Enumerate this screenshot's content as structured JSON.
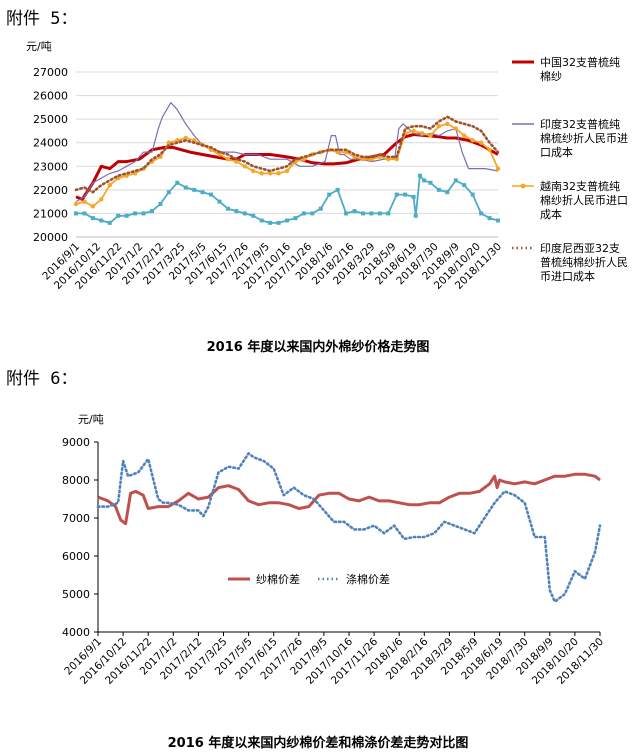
{
  "attachments": {
    "a5": "附件 5：",
    "a6": "附件 6："
  },
  "chart_data": [
    {
      "type": "line",
      "title": "2016 年度以来国内外棉纱价格走势图",
      "ylabel": "元/吨",
      "ylim": [
        20000,
        27000
      ],
      "yticks": [
        20000,
        21000,
        22000,
        23000,
        24000,
        25000,
        26000,
        27000
      ],
      "xticks": [
        "2016/9/1",
        "2016/10/12",
        "2016/11/22",
        "2017/1/2",
        "2017/2/12",
        "2017/3/25",
        "2017/5/5",
        "2017/6/15",
        "2017/7/26",
        "2017/9/5",
        "2017/10/16",
        "2017/11/26",
        "2018/1/6",
        "2018/2/16",
        "2018/3/29",
        "2018/5/9",
        "2018/6/19",
        "2018/7/30",
        "2018/9/9",
        "2018/10/20",
        "2018/11/30"
      ],
      "grid": "horizontal",
      "legend_position": "right",
      "x_domain": [
        0,
        20
      ],
      "series": [
        {
          "name": "中国32支普梳纯棉纱",
          "color": "#c00000",
          "style": "solid-thick",
          "x": [
            0,
            0.3,
            0.8,
            1.2,
            1.6,
            2,
            2.4,
            3,
            3.6,
            4.2,
            4.6,
            5,
            5.4,
            6,
            6.6,
            7.2,
            7.6,
            8,
            8.6,
            9.2,
            10,
            10.6,
            11.2,
            11.8,
            12.2,
            12.8,
            13.4,
            14,
            14.6,
            15.2,
            15.6,
            16,
            16.6,
            17.2,
            17.6,
            18,
            18.6,
            19.2,
            20
          ],
          "values": [
            21700,
            21600,
            22300,
            23000,
            22900,
            23200,
            23200,
            23300,
            23700,
            23800,
            23800,
            23700,
            23600,
            23500,
            23400,
            23300,
            23300,
            23500,
            23500,
            23500,
            23400,
            23300,
            23150,
            23100,
            23100,
            23150,
            23300,
            23400,
            23500,
            24000,
            24250,
            24350,
            24300,
            24250,
            24200,
            24200,
            24100,
            23900,
            23500
          ]
        },
        {
          "name": "印度32支普梳纯棉梳纱折人民币进口成本",
          "color": "#7f6cb5",
          "style": "solid-thin",
          "x": [
            0,
            0.4,
            0.8,
            1.2,
            1.6,
            2,
            2.4,
            2.8,
            3.2,
            3.6,
            3.9,
            4.1,
            4.3,
            4.5,
            4.8,
            5.2,
            5.6,
            6,
            6.4,
            7,
            7.5,
            8,
            8.6,
            9.2,
            10,
            10.6,
            11.2,
            11.8,
            12.1,
            12.3,
            12.5,
            12.7,
            13,
            13.5,
            14,
            14.6,
            15.1,
            15.3,
            15.5,
            16,
            16.4,
            16.8,
            17.2,
            17.6,
            18,
            18.3,
            18.6,
            19,
            19.4,
            20
          ],
          "values": [
            21500,
            21700,
            22300,
            22500,
            22700,
            22800,
            23000,
            23200,
            23600,
            23600,
            24600,
            25100,
            25400,
            25700,
            25400,
            24800,
            24300,
            23900,
            23700,
            23600,
            23600,
            23500,
            23500,
            23300,
            23300,
            23000,
            23000,
            23200,
            24300,
            24300,
            23500,
            23500,
            23300,
            23300,
            23200,
            23300,
            23300,
            24600,
            24800,
            24400,
            24300,
            24400,
            24300,
            24500,
            24600,
            23600,
            22900,
            22900,
            22900,
            22800
          ]
        },
        {
          "name": "越南32支普梳纯棉纱折人民币进口成本",
          "color": "#f5a623",
          "style": "solid-markers",
          "x": [
            0,
            0.4,
            0.8,
            1.2,
            1.6,
            2,
            2.4,
            2.8,
            3.2,
            3.6,
            4,
            4.4,
            4.8,
            5.2,
            5.6,
            6,
            6.4,
            6.8,
            7.2,
            7.6,
            8,
            8.4,
            8.8,
            9.2,
            9.6,
            10,
            10.4,
            10.8,
            11.2,
            11.6,
            12,
            12.4,
            12.8,
            13.2,
            13.6,
            14,
            14.4,
            14.8,
            15.2,
            15.6,
            16,
            16.4,
            16.8,
            17.2,
            17.6,
            18,
            18.4,
            18.8,
            19.2,
            19.6,
            20
          ],
          "values": [
            21400,
            21500,
            21300,
            21600,
            22200,
            22500,
            22600,
            22700,
            22900,
            23200,
            23400,
            24000,
            24100,
            24200,
            24100,
            23900,
            23700,
            23500,
            23300,
            23200,
            23000,
            22800,
            22700,
            22700,
            22700,
            22800,
            23200,
            23300,
            23500,
            23600,
            23700,
            23600,
            23600,
            23400,
            23300,
            23300,
            23400,
            23300,
            23300,
            24400,
            24500,
            24400,
            24300,
            24700,
            24800,
            24600,
            24300,
            24100,
            24000,
            23700,
            22900
          ]
        },
        {
          "name": "印度尼西亚32支普梳纯棉纱折人民币进口成本",
          "color": "#a0522d",
          "style": "dotted",
          "x": [
            0,
            0.4,
            0.8,
            1.2,
            1.6,
            2,
            2.4,
            2.8,
            3.2,
            3.6,
            4,
            4.4,
            4.8,
            5.2,
            5.6,
            6,
            6.4,
            6.8,
            7.2,
            7.6,
            8,
            8.4,
            8.8,
            9.2,
            9.6,
            10,
            10.4,
            10.8,
            11.2,
            11.6,
            12,
            12.4,
            12.8,
            13.2,
            13.6,
            14,
            14.4,
            14.8,
            15.2,
            15.6,
            16,
            16.4,
            16.8,
            17.2,
            17.6,
            18,
            18.4,
            18.8,
            19.2,
            19.6,
            20
          ],
          "values": [
            22000,
            22100,
            21900,
            22200,
            22400,
            22600,
            22700,
            22800,
            22900,
            23300,
            23500,
            23900,
            24000,
            24100,
            24000,
            23900,
            23800,
            23600,
            23500,
            23300,
            23200,
            23000,
            22900,
            22800,
            22900,
            23000,
            23300,
            23400,
            23500,
            23600,
            23700,
            23700,
            23700,
            23500,
            23400,
            23400,
            23500,
            23400,
            23400,
            24600,
            24700,
            24700,
            24600,
            24900,
            25100,
            24900,
            24800,
            24700,
            24500,
            24000,
            23600
          ]
        },
        {
          "name": "",
          "color": "#4bacc6",
          "style": "solid-squares",
          "x": [
            0,
            0.4,
            0.8,
            1.2,
            1.6,
            2,
            2.4,
            2.8,
            3.2,
            3.6,
            4,
            4.4,
            4.8,
            5.2,
            5.6,
            6,
            6.4,
            6.8,
            7.2,
            7.6,
            8,
            8.4,
            8.8,
            9.2,
            9.6,
            10,
            10.4,
            10.8,
            11.2,
            11.6,
            12,
            12.4,
            12.8,
            13.2,
            13.6,
            14,
            14.4,
            14.8,
            15.2,
            15.6,
            16,
            16.1,
            16.3,
            16.5,
            16.8,
            17.2,
            17.6,
            18,
            18.4,
            18.8,
            19.2,
            19.6,
            20
          ],
          "values": [
            21000,
            21000,
            20800,
            20700,
            20600,
            20900,
            20900,
            21000,
            21000,
            21100,
            21400,
            21900,
            22300,
            22100,
            22000,
            21900,
            21800,
            21500,
            21200,
            21100,
            21000,
            20900,
            20700,
            20600,
            20600,
            20700,
            20800,
            21000,
            21000,
            21200,
            21800,
            22000,
            21000,
            21100,
            21000,
            21000,
            21000,
            21000,
            21800,
            21800,
            21700,
            20900,
            22600,
            22400,
            22300,
            22000,
            21900,
            22400,
            22200,
            21800,
            21000,
            20800,
            20700
          ]
        }
      ]
    },
    {
      "type": "line",
      "title": "2016 年度以来国内纱棉价差和棉涤价差走势对比图",
      "ylabel": "元/吨",
      "ylim": [
        4000,
        9000
      ],
      "yticks": [
        4000,
        5000,
        6000,
        7000,
        8000,
        9000
      ],
      "xticks": [
        "2016/9/1",
        "2016/10/12",
        "2016/11/22",
        "2017/1/2",
        "2017/2/12",
        "2017/3/25",
        "2017/5/5",
        "2017/6/15",
        "2017/7/26",
        "2017/9/5",
        "2017/10/16",
        "2017/11/26",
        "2018/1/6",
        "2018/2/16",
        "2018/3/29",
        "2018/5/9",
        "2018/6/19",
        "2018/7/30",
        "2018/9/9",
        "2018/10/20",
        "2018/11/30"
      ],
      "grid": "none",
      "legend_position": "inside-left",
      "x_domain": [
        0,
        20
      ],
      "series": [
        {
          "name": "纱棉价差",
          "color": "#c0504d",
          "style": "solid-thick",
          "x": [
            0,
            0.4,
            0.7,
            0.9,
            1.1,
            1.3,
            1.5,
            1.8,
            2,
            2.4,
            2.8,
            3.2,
            3.6,
            4,
            4.4,
            4.8,
            5.2,
            5.6,
            6,
            6.4,
            6.8,
            7.2,
            7.6,
            8,
            8.4,
            8.8,
            9.2,
            9.6,
            10,
            10.4,
            10.8,
            11.2,
            11.6,
            12,
            12.4,
            12.8,
            13.2,
            13.6,
            14,
            14.4,
            14.8,
            15.2,
            15.6,
            15.8,
            15.9,
            16,
            16.2,
            16.6,
            17,
            17.4,
            17.8,
            18.2,
            18.6,
            19,
            19.4,
            19.8,
            20
          ],
          "values": [
            7550,
            7450,
            7300,
            6950,
            6850,
            7650,
            7700,
            7600,
            7250,
            7300,
            7300,
            7450,
            7650,
            7500,
            7550,
            7800,
            7850,
            7750,
            7450,
            7350,
            7400,
            7400,
            7350,
            7250,
            7300,
            7600,
            7650,
            7650,
            7500,
            7450,
            7550,
            7450,
            7450,
            7400,
            7350,
            7350,
            7400,
            7400,
            7550,
            7650,
            7650,
            7700,
            7900,
            8100,
            7800,
            8000,
            7950,
            7900,
            7950,
            7900,
            8000,
            8100,
            8100,
            8150,
            8150,
            8100,
            8000
          ]
        },
        {
          "name": "涤棉价差",
          "color": "#4f81bd",
          "style": "dotted",
          "x": [
            0,
            0.4,
            0.8,
            1,
            1.2,
            1.6,
            2,
            2.4,
            2.6,
            2.8,
            3.2,
            3.6,
            4,
            4.2,
            4.4,
            4.8,
            5.2,
            5.6,
            6,
            6.2,
            6.6,
            7,
            7.4,
            7.8,
            8.2,
            8.6,
            9,
            9.4,
            9.8,
            10.2,
            10.6,
            11,
            11.4,
            11.8,
            12.2,
            12.6,
            13,
            13.4,
            13.8,
            14.2,
            14.6,
            15,
            15.4,
            15.8,
            16.2,
            16.6,
            17,
            17.4,
            17.8,
            18,
            18.2,
            18.6,
            19,
            19.4,
            19.8,
            20
          ],
          "values": [
            7300,
            7300,
            7400,
            8500,
            8100,
            8200,
            8550,
            7500,
            7400,
            7400,
            7350,
            7200,
            7200,
            7050,
            7300,
            8200,
            8350,
            8300,
            8700,
            8600,
            8500,
            8300,
            7600,
            7800,
            7600,
            7500,
            7200,
            6900,
            6900,
            6700,
            6700,
            6800,
            6600,
            6800,
            6450,
            6500,
            6500,
            6600,
            6900,
            6800,
            6700,
            6600,
            7000,
            7400,
            7700,
            7600,
            7400,
            6500,
            6500,
            5100,
            4800,
            5000,
            5600,
            5400,
            6100,
            6800
          ]
        }
      ]
    }
  ]
}
